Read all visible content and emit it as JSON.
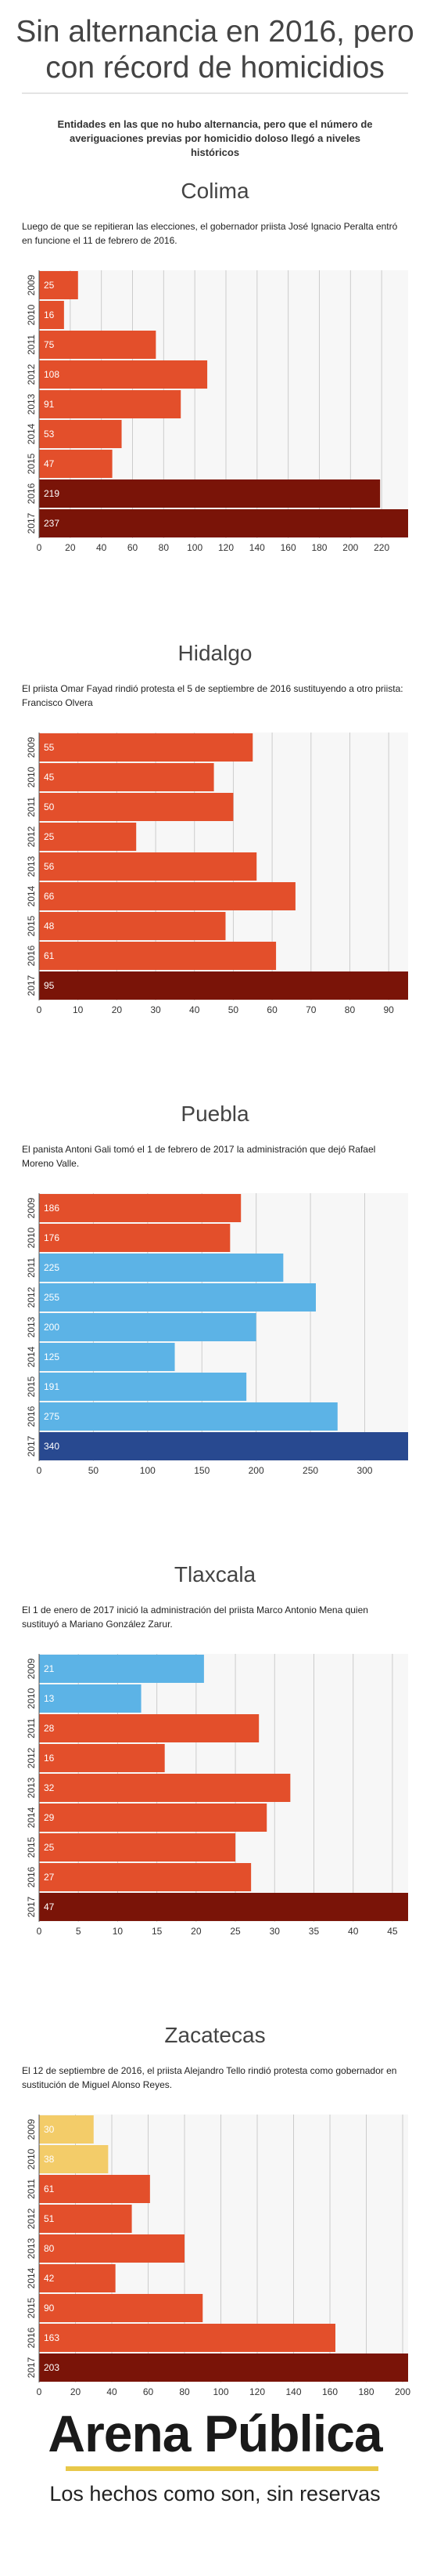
{
  "header": {
    "title_line1": "Sin alternancia en 2016, pero",
    "title_line2": "con récord de homicidios",
    "subtitle": "Entidades en las que no hubo alternancia, pero que el número de averiguaciones previas por homicidio doloso llegó a niveles históricos"
  },
  "colors": {
    "orange": "#e34f2b",
    "dark_red": "#7a1408",
    "light_blue": "#5cb3e6",
    "dark_blue": "#284990",
    "yellow": "#f3cc69"
  },
  "chart_data": [
    {
      "type": "bar",
      "orientation": "horizontal",
      "title": "Colima",
      "note": "Luego de que se repitieran las elecciones, el gobernador priista José Ignacio Peralta entró en funcione el 11 de febrero de 2016.",
      "categories": [
        "2009",
        "2010",
        "2011",
        "2012",
        "2013",
        "2014",
        "2015",
        "2016",
        "2017"
      ],
      "values": [
        25,
        16,
        75,
        108,
        91,
        53,
        47,
        219,
        237
      ],
      "colors": [
        "orange",
        "orange",
        "orange",
        "orange",
        "orange",
        "orange",
        "orange",
        "dark_red",
        "dark_red"
      ],
      "xlim": [
        0,
        237
      ],
      "ticks": [
        0,
        20,
        40,
        60,
        80,
        100,
        120,
        140,
        160,
        180,
        200,
        220
      ],
      "grid": true
    },
    {
      "type": "bar",
      "orientation": "horizontal",
      "title": "Hidalgo",
      "note": "El priista Omar Fayad rindió protesta el 5 de septiembre de 2016 sustituyendo a otro priista: Francisco Olvera",
      "categories": [
        "2009",
        "2010",
        "2011",
        "2012",
        "2013",
        "2014",
        "2015",
        "2016",
        "2017"
      ],
      "values": [
        55,
        45,
        50,
        25,
        56,
        66,
        48,
        61,
        95
      ],
      "colors": [
        "orange",
        "orange",
        "orange",
        "orange",
        "orange",
        "orange",
        "orange",
        "orange",
        "dark_red"
      ],
      "xlim": [
        0,
        95
      ],
      "ticks": [
        0,
        10,
        20,
        30,
        40,
        50,
        60,
        70,
        80,
        90
      ],
      "grid": true
    },
    {
      "type": "bar",
      "orientation": "horizontal",
      "title": "Puebla",
      "note": "El panista Antoni Gali tomó el 1 de febrero de 2017 la administración que dejó Rafael Moreno Valle.",
      "categories": [
        "2009",
        "2010",
        "2011",
        "2012",
        "2013",
        "2014",
        "2015",
        "2016",
        "2017"
      ],
      "values": [
        186,
        176,
        225,
        255,
        200,
        125,
        191,
        275,
        340
      ],
      "colors": [
        "orange",
        "orange",
        "light_blue",
        "light_blue",
        "light_blue",
        "light_blue",
        "light_blue",
        "light_blue",
        "dark_blue"
      ],
      "xlim": [
        0,
        340
      ],
      "ticks": [
        0,
        50,
        100,
        150,
        200,
        250,
        300
      ],
      "grid": true
    },
    {
      "type": "bar",
      "orientation": "horizontal",
      "title": "Tlaxcala",
      "note": "El 1 de enero de 2017 inició la administración del priista Marco Antonio Mena quien sustituyó a Mariano González Zarur.",
      "categories": [
        "2009",
        "2010",
        "2011",
        "2012",
        "2013",
        "2014",
        "2015",
        "2016",
        "2017"
      ],
      "values": [
        21,
        13,
        28,
        16,
        32,
        29,
        25,
        27,
        47
      ],
      "colors": [
        "light_blue",
        "light_blue",
        "orange",
        "orange",
        "orange",
        "orange",
        "orange",
        "orange",
        "dark_red"
      ],
      "xlim": [
        0,
        47
      ],
      "ticks": [
        0,
        5,
        10,
        15,
        20,
        25,
        30,
        35,
        40,
        45
      ],
      "grid": true
    },
    {
      "type": "bar",
      "orientation": "horizontal",
      "title": "Zacatecas",
      "note": "El 12 de septiembre de 2016, el priista Alejandro Tello rindió protesta como gobernador en sustitución de Miguel Alonso Reyes.",
      "categories": [
        "2009",
        "2010",
        "2011",
        "2012",
        "2013",
        "2014",
        "2015",
        "2016",
        "2017"
      ],
      "values": [
        30,
        38,
        61,
        51,
        80,
        42,
        90,
        163,
        203
      ],
      "colors": [
        "yellow",
        "yellow",
        "orange",
        "orange",
        "orange",
        "orange",
        "orange",
        "orange",
        "dark_red"
      ],
      "xlim": [
        0,
        203
      ],
      "ticks": [
        0,
        20,
        40,
        60,
        80,
        100,
        120,
        140,
        160,
        180,
        200
      ],
      "grid": true
    }
  ],
  "footer": {
    "logo": "Arena Pública",
    "tagline": "Los hechos como son, sin reservas"
  }
}
